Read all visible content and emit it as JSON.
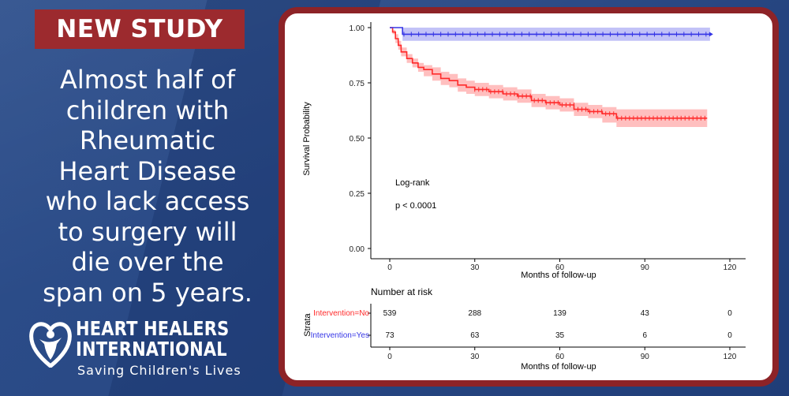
{
  "badge": "NEW STUDY",
  "headline": [
    "Almost half of",
    "children with",
    "Rheumatic",
    "Heart Disease",
    "who lack access",
    "to surgery will",
    "die over the",
    "span on 5 years."
  ],
  "brand": {
    "line1": "HEART HEALERS",
    "line2": "INTERNATIONAL",
    "tagline": "Saving Children's Lives"
  },
  "colors": {
    "panel_border": "#8d2327",
    "badge_bg": "#9c2a2e",
    "no_series": "#ff2a2a",
    "yes_series": "#3535e6"
  },
  "chart_data": {
    "type": "line",
    "subtype": "kaplan-meier survival curve",
    "xlabel": "Months of follow-up",
    "ylabel": "Survival Probability",
    "xlim": [
      0,
      120
    ],
    "ylim": [
      0,
      1
    ],
    "x_ticks": [
      "0",
      "30",
      "60",
      "90",
      "120"
    ],
    "y_ticks": [
      "0.00",
      "0.25",
      "0.50",
      "0.75",
      "1.00"
    ],
    "annotation": [
      "Log-rank",
      "p < 0.0001"
    ],
    "series": [
      {
        "name": "Intervention=No",
        "color": "#ff2a2a",
        "x": [
          0,
          1,
          2,
          3,
          4,
          6,
          8,
          10,
          12,
          15,
          18,
          21,
          24,
          27,
          30,
          35,
          40,
          45,
          50,
          55,
          60,
          65,
          70,
          75,
          80,
          90,
          100,
          112
        ],
        "y": [
          1.0,
          0.98,
          0.95,
          0.92,
          0.89,
          0.86,
          0.84,
          0.82,
          0.81,
          0.79,
          0.77,
          0.76,
          0.74,
          0.73,
          0.72,
          0.71,
          0.7,
          0.69,
          0.67,
          0.66,
          0.65,
          0.63,
          0.62,
          0.61,
          0.59,
          0.59,
          0.59,
          0.59
        ],
        "ci_lower": [
          1.0,
          0.97,
          0.93,
          0.9,
          0.87,
          0.84,
          0.82,
          0.8,
          0.78,
          0.76,
          0.74,
          0.73,
          0.71,
          0.7,
          0.69,
          0.68,
          0.67,
          0.66,
          0.64,
          0.63,
          0.62,
          0.6,
          0.59,
          0.57,
          0.55,
          0.55,
          0.55,
          0.55
        ],
        "ci_upper": [
          1.0,
          0.99,
          0.97,
          0.94,
          0.91,
          0.88,
          0.86,
          0.84,
          0.83,
          0.82,
          0.8,
          0.79,
          0.77,
          0.76,
          0.75,
          0.74,
          0.73,
          0.72,
          0.7,
          0.69,
          0.68,
          0.66,
          0.65,
          0.64,
          0.63,
          0.63,
          0.63,
          0.63
        ]
      },
      {
        "name": "Intervention=Yes",
        "color": "#3535e6",
        "x": [
          0,
          4,
          4.5,
          113
        ],
        "y": [
          1.0,
          1.0,
          0.97,
          0.97
        ],
        "ci_lower": [
          1.0,
          1.0,
          0.94,
          0.94
        ],
        "ci_upper": [
          1.0,
          1.0,
          1.0,
          1.0
        ]
      }
    ],
    "risk_table": {
      "title": "Number at risk",
      "strata_label": "Strata",
      "times": [
        0,
        30,
        60,
        90,
        120
      ],
      "x_ticks": [
        "0",
        "30",
        "60",
        "90",
        "120"
      ],
      "xlabel": "Months of follow-up",
      "rows": [
        {
          "label": "Intervention=No",
          "color": "#ff2a2a",
          "values": [
            "539",
            "288",
            "139",
            "43",
            "0"
          ]
        },
        {
          "label": "Intervention=Yes",
          "color": "#3535e6",
          "values": [
            "73",
            "63",
            "35",
            "6",
            "0"
          ]
        }
      ]
    }
  }
}
